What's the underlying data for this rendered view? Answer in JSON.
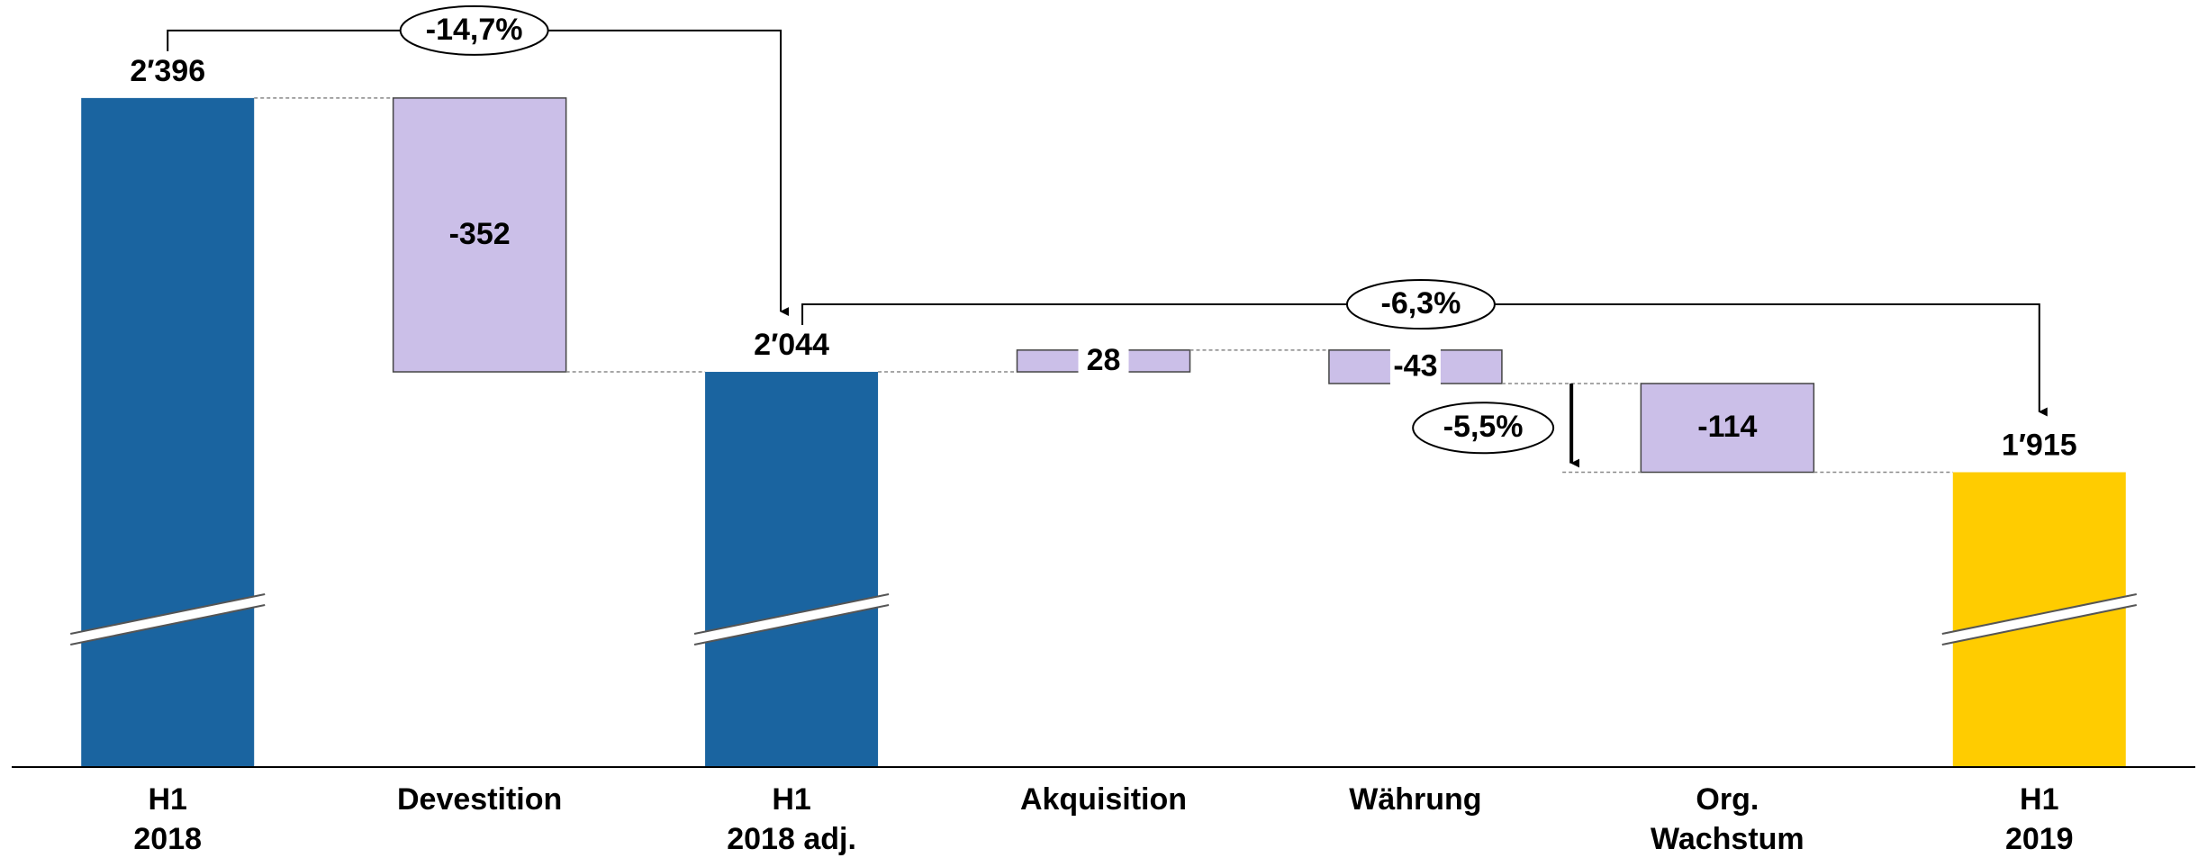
{
  "chart_data": {
    "type": "waterfall",
    "categories": [
      [
        "H1",
        "2018"
      ],
      [
        "Devestition"
      ],
      [
        "H1",
        "2018 adj."
      ],
      [
        "Akquisition"
      ],
      [
        "Währung"
      ],
      [
        "Org.",
        "Wachstum"
      ],
      [
        "H1",
        "2019"
      ]
    ],
    "measures": [
      "total",
      "relative",
      "total",
      "relative",
      "relative",
      "relative",
      "total"
    ],
    "values": [
      2396,
      -352,
      2044,
      28,
      -43,
      -114,
      1915
    ],
    "value_labels": [
      "2′396",
      "-352",
      "2′044",
      "28",
      "-43",
      "-114",
      "1′915"
    ],
    "colors": [
      "#1a64a0",
      "#cbbfe8",
      "#1a64a0",
      "#cbbfe8",
      "#cbbfe8",
      "#cbbfe8",
      "#ffcc00"
    ],
    "ylim": [
      1536,
      2522
    ],
    "axis_break": true,
    "annotations": [
      {
        "text": "-14,7%",
        "from": 0,
        "to": 2
      },
      {
        "text": "-6,3%",
        "from": 2,
        "to": 6
      },
      {
        "text": "-5,5%",
        "from": 4,
        "to": 5
      }
    ]
  }
}
